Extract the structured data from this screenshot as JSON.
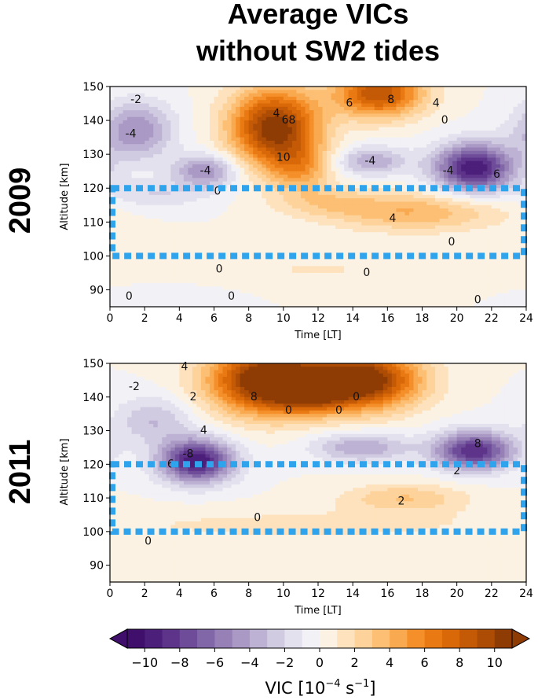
{
  "figure": {
    "title_line1": "Average VICs",
    "title_line2": "without SW2 tides"
  },
  "chart_data": [
    {
      "type": "heatmap",
      "row_label": "2009",
      "xlabel": "Time [LT]",
      "ylabel": "Altitude [km]",
      "xlim": [
        0,
        24
      ],
      "ylim": [
        85,
        150
      ],
      "xticks": [
        "0",
        "2",
        "4",
        "6",
        "8",
        "10",
        "12",
        "14",
        "16",
        "18",
        "20",
        "22",
        "24"
      ],
      "yticks": [
        "90",
        "100",
        "110",
        "120",
        "130",
        "140",
        "150"
      ],
      "highlight_box": {
        "x": [
          0,
          24
        ],
        "y": [
          100,
          120
        ]
      },
      "blobs": [
        {
          "x": 9.5,
          "y": 138,
          "sx": 1.8,
          "sy": 8,
          "amp": 11
        },
        {
          "x": 15.5,
          "y": 148,
          "sx": 1.8,
          "sy": 5,
          "amp": 9
        },
        {
          "x": 11.0,
          "y": 126,
          "sx": 1.3,
          "sy": 5,
          "amp": 4
        },
        {
          "x": 17.5,
          "y": 113,
          "sx": 3.5,
          "sy": 4,
          "amp": 4
        },
        {
          "x": 12.5,
          "y": 116,
          "sx": 2.0,
          "sy": 3,
          "amp": 2
        },
        {
          "x": 21.0,
          "y": 126,
          "sx": 1.6,
          "sy": 5,
          "amp": -10
        },
        {
          "x": 1.5,
          "y": 137,
          "sx": 1.5,
          "sy": 6,
          "amp": -5
        },
        {
          "x": 5.5,
          "y": 125,
          "sx": 1.3,
          "sy": 3.5,
          "amp": -5
        },
        {
          "x": 15.0,
          "y": 128,
          "sx": 1.5,
          "sy": 3,
          "amp": -4
        },
        {
          "x": 2.5,
          "y": 118,
          "sx": 2.0,
          "sy": 3,
          "amp": -2
        },
        {
          "x": 12.0,
          "y": 96,
          "sx": 8.0,
          "sy": 4,
          "amp": 1
        },
        {
          "x": 3.5,
          "y": 88,
          "sx": 2.5,
          "sy": 3,
          "amp": -1
        }
      ],
      "contour_labels": [
        {
          "x": 1.5,
          "y": 146,
          "text": "-2"
        },
        {
          "x": 1.2,
          "y": 136,
          "text": "-4"
        },
        {
          "x": 5.5,
          "y": 125,
          "text": "-4"
        },
        {
          "x": 9.6,
          "y": 142,
          "text": "4"
        },
        {
          "x": 10.3,
          "y": 140,
          "text": "68"
        },
        {
          "x": 10.0,
          "y": 129,
          "text": "10"
        },
        {
          "x": 13.8,
          "y": 145,
          "text": "6"
        },
        {
          "x": 16.2,
          "y": 146,
          "text": "8"
        },
        {
          "x": 18.8,
          "y": 145,
          "text": "4"
        },
        {
          "x": 19.3,
          "y": 140,
          "text": "0"
        },
        {
          "x": 15.0,
          "y": 128,
          "text": "-4"
        },
        {
          "x": 19.5,
          "y": 125,
          "text": "-4"
        },
        {
          "x": 22.3,
          "y": 124,
          "text": "6"
        },
        {
          "x": 16.3,
          "y": 111,
          "text": "4"
        },
        {
          "x": 19.7,
          "y": 104,
          "text": "0"
        },
        {
          "x": 6.2,
          "y": 119,
          "text": "0"
        },
        {
          "x": 6.3,
          "y": 96,
          "text": "0"
        },
        {
          "x": 14.8,
          "y": 95,
          "text": "0"
        },
        {
          "x": 1.1,
          "y": 88,
          "text": "0"
        },
        {
          "x": 7.0,
          "y": 88,
          "text": "0"
        },
        {
          "x": 21.2,
          "y": 87,
          "text": "0"
        }
      ]
    },
    {
      "type": "heatmap",
      "row_label": "2011",
      "xlabel": "Time [LT]",
      "ylabel": "Altitude [km]",
      "xlim": [
        0,
        24
      ],
      "ylim": [
        85,
        150
      ],
      "xticks": [
        "0",
        "2",
        "4",
        "6",
        "8",
        "10",
        "12",
        "14",
        "16",
        "18",
        "20",
        "22",
        "24"
      ],
      "yticks": [
        "90",
        "100",
        "110",
        "120",
        "130",
        "140",
        "150"
      ],
      "highlight_box": {
        "x": [
          0,
          24
        ],
        "y": [
          100,
          120
        ]
      },
      "blobs": [
        {
          "x": 9.0,
          "y": 145,
          "sx": 2.3,
          "sy": 7,
          "amp": 12
        },
        {
          "x": 14.5,
          "y": 145,
          "sx": 2.3,
          "sy": 6,
          "amp": 12
        },
        {
          "x": 11.5,
          "y": 141,
          "sx": 1.5,
          "sy": 4,
          "amp": 5
        },
        {
          "x": 5.0,
          "y": 121,
          "sx": 1.5,
          "sy": 4.5,
          "amp": -10
        },
        {
          "x": 21.0,
          "y": 124,
          "sx": 1.6,
          "sy": 4,
          "amp": -9
        },
        {
          "x": 14.5,
          "y": 125,
          "sx": 2.0,
          "sy": 3,
          "amp": -4
        },
        {
          "x": 2.5,
          "y": 133,
          "sx": 1.6,
          "sy": 5,
          "amp": -3
        },
        {
          "x": 17.0,
          "y": 110,
          "sx": 2.5,
          "sy": 3,
          "amp": 3
        },
        {
          "x": 11.0,
          "y": 102,
          "sx": 8.0,
          "sy": 3.5,
          "amp": 1.3
        },
        {
          "x": 12.0,
          "y": 90,
          "sx": 9.0,
          "sy": 4,
          "amp": 0.9
        }
      ],
      "contour_labels": [
        {
          "x": 4.3,
          "y": 149,
          "text": "4"
        },
        {
          "x": 1.4,
          "y": 143,
          "text": "-2"
        },
        {
          "x": 4.8,
          "y": 140,
          "text": "2"
        },
        {
          "x": 8.3,
          "y": 140,
          "text": "8"
        },
        {
          "x": 10.3,
          "y": 136,
          "text": "0"
        },
        {
          "x": 13.2,
          "y": 136,
          "text": "0"
        },
        {
          "x": 14.2,
          "y": 140,
          "text": "0"
        },
        {
          "x": 5.4,
          "y": 130,
          "text": "4"
        },
        {
          "x": 4.5,
          "y": 123,
          "text": "-8"
        },
        {
          "x": 3.5,
          "y": 120,
          "text": "6"
        },
        {
          "x": 21.2,
          "y": 126,
          "text": "8"
        },
        {
          "x": 20.0,
          "y": 118,
          "text": "2"
        },
        {
          "x": 16.8,
          "y": 109,
          "text": "2"
        },
        {
          "x": 8.5,
          "y": 104,
          "text": "0"
        },
        {
          "x": 2.2,
          "y": 97,
          "text": "0"
        }
      ]
    }
  ],
  "colorbar": {
    "label_prefix": "VIC [10",
    "label_exp": "−4",
    "label_unit": " s",
    "label_unit_exp": "−1",
    "label_suffix": "]",
    "min": -11,
    "max": 11,
    "ticks": [
      {
        "value": -10,
        "text": "−10"
      },
      {
        "value": -8,
        "text": "−8"
      },
      {
        "value": -6,
        "text": "−6"
      },
      {
        "value": -4,
        "text": "−4"
      },
      {
        "value": -2,
        "text": "−2"
      },
      {
        "value": 0,
        "text": "0"
      },
      {
        "value": 2,
        "text": "2"
      },
      {
        "value": 4,
        "text": "4"
      },
      {
        "value": 6,
        "text": "6"
      },
      {
        "value": 8,
        "text": "8"
      },
      {
        "value": 10,
        "text": "10"
      }
    ]
  },
  "colors": {
    "neg_levels": [
      "#3f0f6b",
      "#4b1f7a",
      "#5d348a",
      "#6f4c99",
      "#8167a8",
      "#9680b6",
      "#aa98c5",
      "#bdb2d3",
      "#d1cbe2",
      "#e4e1ef",
      "#f2f1f6"
    ],
    "pos_levels": [
      "#fbf2e3",
      "#fde2bd",
      "#fdd39b",
      "#fcbf74",
      "#f9a94f",
      "#f48f2a",
      "#e97912",
      "#d86808",
      "#c45a06",
      "#ad4c05",
      "#8f3c04"
    ],
    "box": "#2fa3ec",
    "axes": "#000000"
  }
}
